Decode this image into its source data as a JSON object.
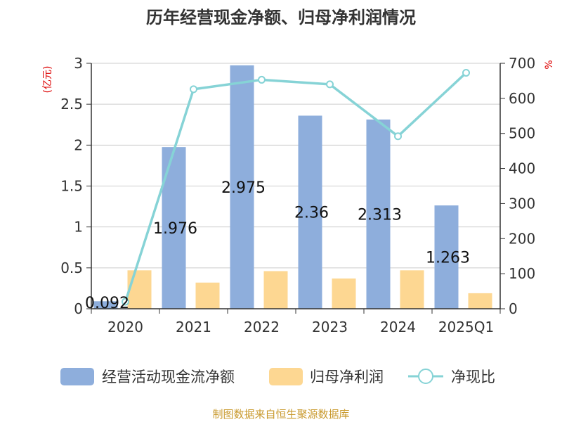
{
  "chart_data": {
    "type": "bar",
    "title": "历年经营现金净额、归母净利润情况",
    "categories": [
      "2020",
      "2021",
      "2022",
      "2023",
      "2024",
      "2025Q1"
    ],
    "y_left": {
      "unit": "(亿元)",
      "ylim": [
        0,
        3
      ],
      "ticks": [
        "0",
        "0.5",
        "1",
        "1.5",
        "2",
        "2.5",
        "3"
      ],
      "tick_values": [
        0,
        0.5,
        1,
        1.5,
        2,
        2.5,
        3
      ]
    },
    "y_right": {
      "unit": "%",
      "ylim": [
        0,
        700
      ],
      "ticks": [
        "0",
        "100",
        "200",
        "300",
        "400",
        "500",
        "600",
        "700"
      ],
      "tick_values": [
        0,
        100,
        200,
        300,
        400,
        500,
        600,
        700
      ]
    },
    "series": [
      {
        "name": "经营活动现金流净额",
        "type": "bar",
        "axis": "left",
        "color": "#8eaedc",
        "values": [
          0.092,
          1.976,
          2.975,
          2.36,
          2.313,
          1.263
        ],
        "labels": [
          "0.092",
          "1.976",
          "2.975",
          "2.36",
          "2.313",
          "1.263"
        ]
      },
      {
        "name": "归母净利润",
        "type": "bar",
        "axis": "left",
        "color": "#fdd792",
        "values": [
          0.47,
          0.32,
          0.46,
          0.37,
          0.47,
          0.19
        ]
      },
      {
        "name": "净现比",
        "type": "line",
        "axis": "right",
        "color": "#86d3d6",
        "values": [
          20,
          626,
          653,
          640,
          492,
          673
        ]
      }
    ],
    "grid": true,
    "legend_position": "bottom"
  },
  "source_text": "制图数据来自恒生聚源数据库"
}
